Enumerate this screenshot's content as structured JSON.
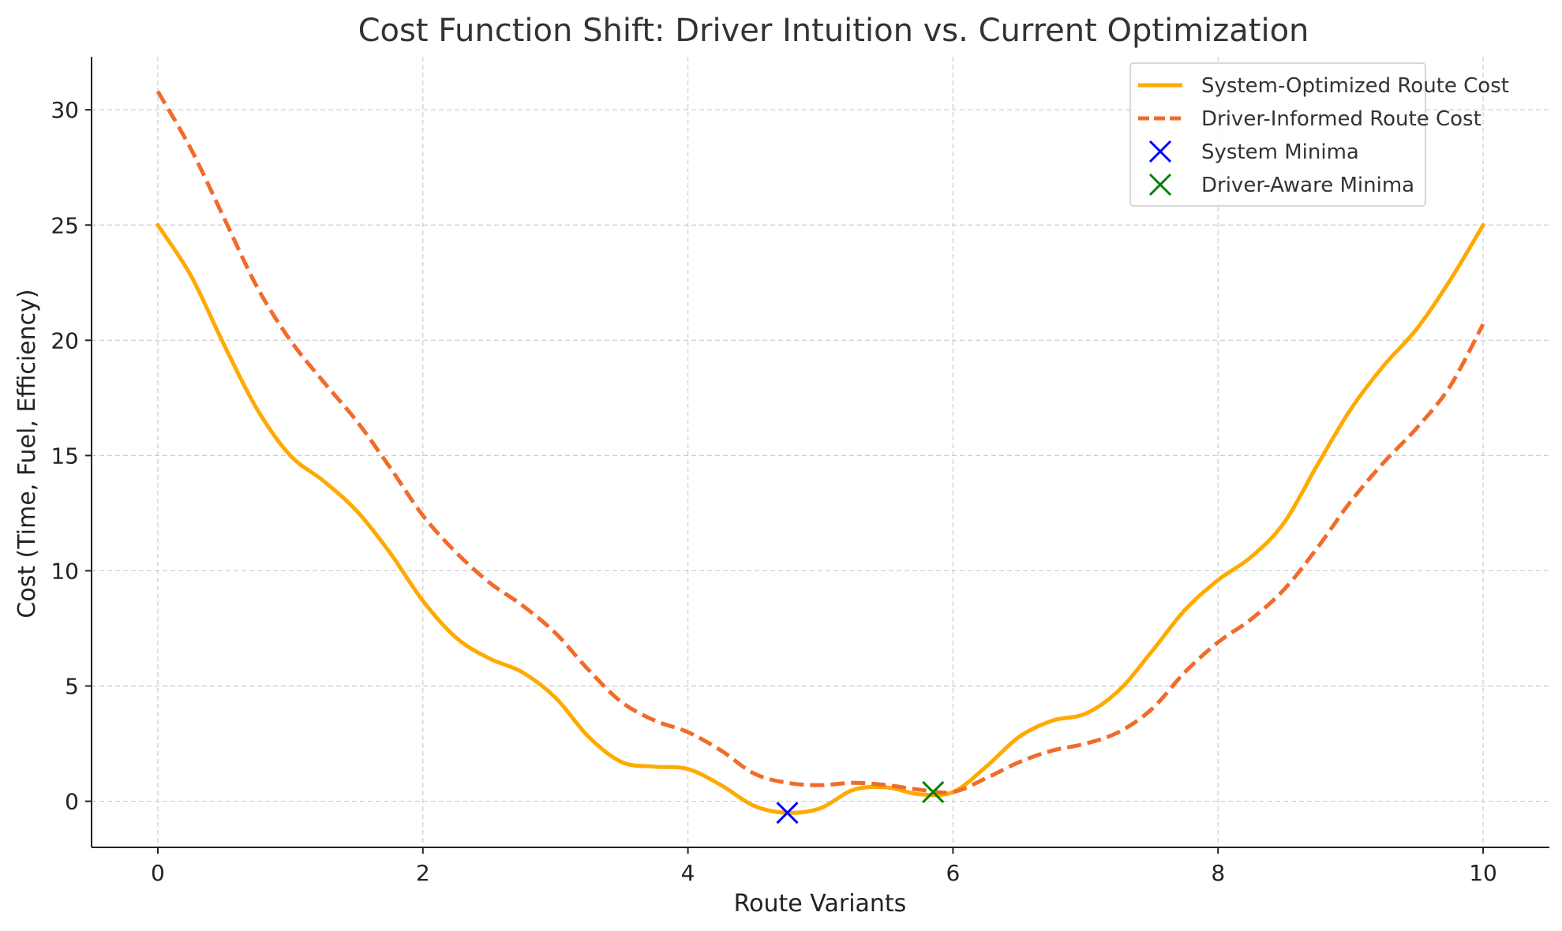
{
  "chart_data": {
    "type": "line",
    "title": "Cost Function Shift: Driver Intuition vs. Current Optimization",
    "xlabel": "Route Variants",
    "ylabel": "Cost (Time, Fuel, Efficiency)",
    "xlim": [
      -0.5,
      10.5
    ],
    "ylim": [
      -2,
      32.3
    ],
    "x_ticks": [
      0,
      2,
      4,
      6,
      8,
      10
    ],
    "y_ticks": [
      0,
      5,
      10,
      15,
      20,
      25,
      30
    ],
    "grid": true,
    "legend_position": "top-right",
    "x": [
      0,
      0.25,
      0.5,
      0.75,
      1,
      1.25,
      1.5,
      1.75,
      2,
      2.25,
      2.5,
      2.75,
      3,
      3.25,
      3.5,
      3.75,
      4,
      4.25,
      4.5,
      4.75,
      5,
      5.25,
      5.5,
      5.75,
      6,
      6.25,
      6.5,
      6.75,
      7,
      7.25,
      7.5,
      7.75,
      8,
      8.25,
      8.5,
      8.75,
      9,
      9.25,
      9.5,
      9.75,
      10
    ],
    "series": [
      {
        "name": "System-Optimized Route Cost",
        "color": "#ffaa00",
        "style": "solid",
        "values": [
          25.0,
          22.8,
          19.8,
          17.0,
          15.0,
          13.9,
          12.6,
          10.8,
          8.7,
          7.1,
          6.2,
          5.6,
          4.5,
          2.8,
          1.7,
          1.5,
          1.4,
          0.7,
          -0.2,
          -0.5,
          -0.3,
          0.5,
          0.6,
          0.3,
          0.4,
          1.5,
          2.8,
          3.5,
          3.8,
          4.8,
          6.5,
          8.3,
          9.6,
          10.6,
          12.1,
          14.6,
          17.0,
          18.9,
          20.5,
          22.6,
          25.0
        ]
      },
      {
        "name": "Driver-Informed Route Cost",
        "color": "#f26b2a",
        "style": "dashed",
        "values": [
          30.8,
          28.3,
          25.3,
          22.3,
          20.0,
          18.2,
          16.5,
          14.5,
          12.4,
          10.8,
          9.5,
          8.5,
          7.3,
          5.7,
          4.3,
          3.5,
          3.0,
          2.2,
          1.2,
          0.8,
          0.7,
          0.8,
          0.7,
          0.5,
          0.4,
          1.0,
          1.7,
          2.2,
          2.5,
          3.0,
          4.0,
          5.6,
          6.9,
          7.9,
          9.2,
          11.0,
          13.0,
          14.7,
          16.2,
          18.0,
          20.7
        ]
      }
    ],
    "markers": [
      {
        "name": "System Minima",
        "color": "#0000ff",
        "marker": "x",
        "x": 4.75,
        "y": -0.5
      },
      {
        "name": "Driver-Aware Minima",
        "color": "#008000",
        "marker": "x",
        "x": 5.85,
        "y": 0.4
      }
    ]
  }
}
